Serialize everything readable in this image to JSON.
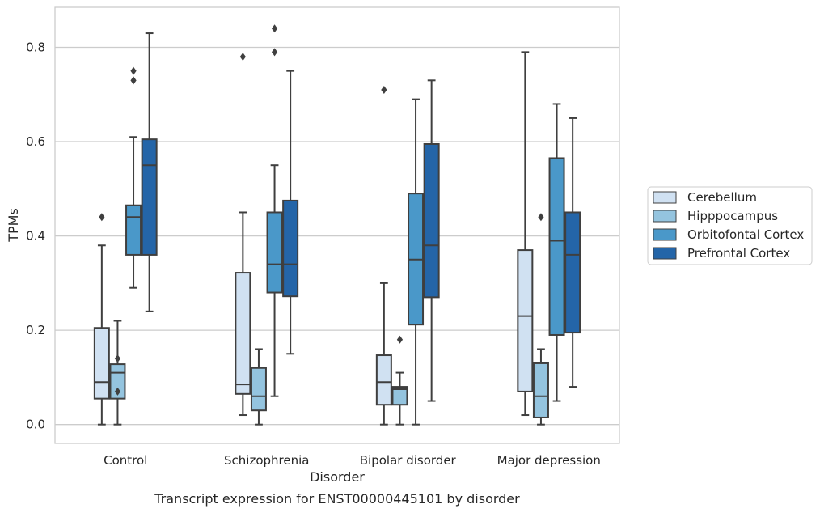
{
  "chart_data": {
    "type": "box",
    "xlabel": "Disorder",
    "ylabel": "TPMs",
    "caption": "Transcript expression for ENST00000445101 by disorder",
    "ylim": [
      -0.04,
      0.885
    ],
    "yticks": [
      0.0,
      0.2,
      0.4,
      0.6,
      0.8
    ],
    "ytick_labels": [
      "0.0",
      "0.2",
      "0.4",
      "0.6",
      "0.8"
    ],
    "grid": "horizontal",
    "legend_position": "right",
    "categories": [
      "Control",
      "Schizophrenia",
      "Bipolar disorder",
      "Major depression"
    ],
    "series": [
      {
        "name": "Cerebellum",
        "color": "#d0e1f2",
        "boxes": [
          {
            "whisker_low": 0.0,
            "q1": 0.055,
            "median": 0.09,
            "q3": 0.205,
            "whisker_high": 0.38,
            "outliers": [
              0.44
            ]
          },
          {
            "whisker_low": 0.02,
            "q1": 0.065,
            "median": 0.085,
            "q3": 0.322,
            "whisker_high": 0.45,
            "outliers": [
              0.78
            ]
          },
          {
            "whisker_low": 0.0,
            "q1": 0.042,
            "median": 0.09,
            "q3": 0.147,
            "whisker_high": 0.3,
            "outliers": [
              0.71
            ]
          },
          {
            "whisker_low": 0.02,
            "q1": 0.07,
            "median": 0.23,
            "q3": 0.37,
            "whisker_high": 0.79,
            "outliers": []
          }
        ]
      },
      {
        "name": "Hipppocampus",
        "color": "#94c4df",
        "boxes": [
          {
            "whisker_low": 0.0,
            "q1": 0.055,
            "median": 0.11,
            "q3": 0.128,
            "whisker_high": 0.22,
            "outliers": [
              0.07,
              0.14
            ]
          },
          {
            "whisker_low": 0.0,
            "q1": 0.03,
            "median": 0.06,
            "q3": 0.12,
            "whisker_high": 0.16,
            "outliers": []
          },
          {
            "whisker_low": 0.0,
            "q1": 0.042,
            "median": 0.075,
            "q3": 0.08,
            "whisker_high": 0.11,
            "outliers": [
              0.18
            ]
          },
          {
            "whisker_low": 0.0,
            "q1": 0.015,
            "median": 0.06,
            "q3": 0.13,
            "whisker_high": 0.16,
            "outliers": [
              0.44
            ]
          }
        ]
      },
      {
        "name": "Orbitofontal Cortex",
        "color": "#4a98c9",
        "boxes": [
          {
            "whisker_low": 0.29,
            "q1": 0.36,
            "median": 0.44,
            "q3": 0.465,
            "whisker_high": 0.61,
            "outliers": [
              0.73,
              0.75
            ]
          },
          {
            "whisker_low": 0.06,
            "q1": 0.28,
            "median": 0.34,
            "q3": 0.45,
            "whisker_high": 0.55,
            "outliers": [
              0.79,
              0.84
            ]
          },
          {
            "whisker_low": 0.0,
            "q1": 0.212,
            "median": 0.35,
            "q3": 0.49,
            "whisker_high": 0.69,
            "outliers": []
          },
          {
            "whisker_low": 0.05,
            "q1": 0.19,
            "median": 0.39,
            "q3": 0.565,
            "whisker_high": 0.68,
            "outliers": []
          }
        ]
      },
      {
        "name": "Prefrontal Cortex",
        "color": "#2465a8",
        "boxes": [
          {
            "whisker_low": 0.24,
            "q1": 0.36,
            "median": 0.55,
            "q3": 0.605,
            "whisker_high": 0.83,
            "outliers": []
          },
          {
            "whisker_low": 0.15,
            "q1": 0.272,
            "median": 0.34,
            "q3": 0.475,
            "whisker_high": 0.75,
            "outliers": []
          },
          {
            "whisker_low": 0.05,
            "q1": 0.27,
            "median": 0.38,
            "q3": 0.595,
            "whisker_high": 0.73,
            "outliers": []
          },
          {
            "whisker_low": 0.08,
            "q1": 0.195,
            "median": 0.36,
            "q3": 0.45,
            "whisker_high": 0.65,
            "outliers": []
          }
        ]
      }
    ]
  }
}
